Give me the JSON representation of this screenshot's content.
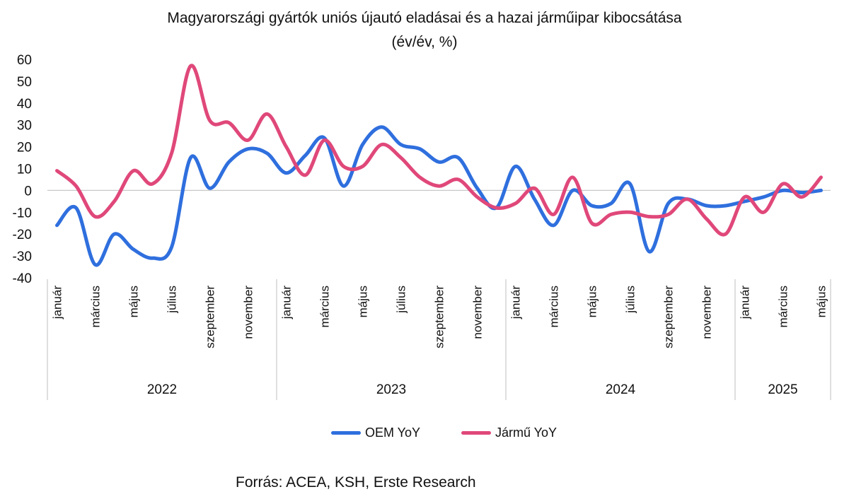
{
  "chart_data": {
    "type": "line",
    "title": "Magyarországi gyártók uniós újautó eladásai és a hazai járműipar kibocsátása",
    "subtitle": "(év/év, %)",
    "ylim": [
      -40,
      60
    ],
    "yticks": [
      60,
      50,
      40,
      30,
      20,
      10,
      0,
      -10,
      -20,
      -30,
      -40
    ],
    "x": [
      "2022-01",
      "2022-02",
      "2022-03",
      "2022-04",
      "2022-05",
      "2022-06",
      "2022-07",
      "2022-08",
      "2022-09",
      "2022-10",
      "2022-11",
      "2022-12",
      "2023-01",
      "2023-02",
      "2023-03",
      "2023-04",
      "2023-05",
      "2023-06",
      "2023-07",
      "2023-08",
      "2023-09",
      "2023-10",
      "2023-11",
      "2023-12",
      "2024-01",
      "2024-02",
      "2024-03",
      "2024-04",
      "2024-05",
      "2024-06",
      "2024-07",
      "2024-08",
      "2024-09",
      "2024-10",
      "2024-11",
      "2024-12",
      "2025-01",
      "2025-02",
      "2025-03",
      "2025-04",
      "2025-05"
    ],
    "month_labels": [
      "január",
      "március",
      "május",
      "július",
      "szeptember",
      "november",
      "január",
      "március",
      "május",
      "július",
      "szeptember",
      "november",
      "január",
      "március",
      "május",
      "július",
      "szeptember",
      "november",
      "január",
      "március",
      "május"
    ],
    "years": [
      "2022",
      "2023",
      "2024",
      "2025"
    ],
    "series": [
      {
        "name": "OEM YoY",
        "color": "#2f6fde",
        "values": [
          -16,
          -8,
          -34,
          -20,
          -27,
          -31,
          -26,
          15,
          1,
          13,
          19,
          17,
          8,
          16,
          24,
          2,
          21,
          29,
          21,
          19,
          13,
          15,
          1,
          -8,
          11,
          -4,
          -16,
          0,
          -7,
          -6,
          3,
          -28,
          -6,
          -4,
          -7,
          -7,
          -5,
          -3,
          0,
          -1,
          0
        ]
      },
      {
        "name": "Jármű YoY",
        "color": "#e0487a",
        "values": [
          9,
          2,
          -12,
          -5,
          9,
          3,
          17,
          57,
          32,
          31,
          23,
          35,
          20,
          7,
          23,
          11,
          11,
          21,
          15,
          6,
          2,
          5,
          -3,
          -8,
          -6,
          1,
          -11,
          6,
          -15,
          -11,
          -10,
          -12,
          -11,
          -4,
          -13,
          -20,
          -3,
          -10,
          3,
          -3,
          6
        ]
      }
    ]
  },
  "source_text": "Forrás: ACEA, KSH, Erste Research"
}
